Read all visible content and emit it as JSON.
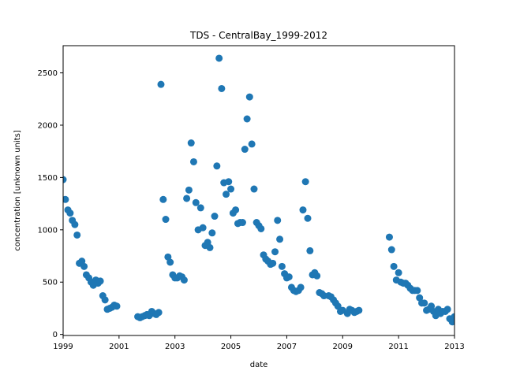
{
  "chart_data": {
    "type": "scatter",
    "title": "TDS - CentralBay_1999-2012",
    "xlabel": "date",
    "ylabel": "concentration [unknown units]",
    "xlim": [
      1999.0,
      2013.0
    ],
    "ylim": [
      -10,
      2760
    ],
    "xticks": [
      1999,
      2001,
      2003,
      2005,
      2007,
      2009,
      2011,
      2013
    ],
    "xtick_labels": [
      "1999",
      "2001",
      "2003",
      "2005",
      "2007",
      "2009",
      "2011",
      "2013"
    ],
    "yticks": [
      0,
      500,
      1000,
      1500,
      2000,
      2500
    ],
    "ytick_labels": [
      "0",
      "500",
      "1000",
      "1500",
      "2000",
      "2500"
    ],
    "grid": false,
    "marker_color": "#1f77b4",
    "series": [
      {
        "name": "TDS",
        "points": [
          [
            1999.0,
            1480
          ],
          [
            1999.08,
            1290
          ],
          [
            1999.17,
            1190
          ],
          [
            1999.25,
            1160
          ],
          [
            1999.33,
            1090
          ],
          [
            1999.42,
            1050
          ],
          [
            1999.5,
            950
          ],
          [
            1999.58,
            680
          ],
          [
            1999.67,
            700
          ],
          [
            1999.75,
            650
          ],
          [
            1999.83,
            570
          ],
          [
            1999.92,
            540
          ],
          [
            2000.0,
            500
          ],
          [
            2000.08,
            470
          ],
          [
            2000.17,
            520
          ],
          [
            2000.25,
            490
          ],
          [
            2000.33,
            510
          ],
          [
            2000.42,
            370
          ],
          [
            2000.5,
            330
          ],
          [
            2000.58,
            240
          ],
          [
            2000.67,
            250
          ],
          [
            2000.75,
            260
          ],
          [
            2000.83,
            280
          ],
          [
            2000.92,
            270
          ],
          [
            2001.67,
            170
          ],
          [
            2001.75,
            160
          ],
          [
            2001.83,
            170
          ],
          [
            2001.92,
            180
          ],
          [
            2002.0,
            190
          ],
          [
            2002.08,
            180
          ],
          [
            2002.17,
            220
          ],
          [
            2002.25,
            200
          ],
          [
            2002.33,
            190
          ],
          [
            2002.42,
            210
          ],
          [
            2002.5,
            2390
          ],
          [
            2002.58,
            1290
          ],
          [
            2002.67,
            1100
          ],
          [
            2002.75,
            740
          ],
          [
            2002.83,
            690
          ],
          [
            2002.92,
            570
          ],
          [
            2003.0,
            540
          ],
          [
            2003.08,
            540
          ],
          [
            2003.17,
            560
          ],
          [
            2003.25,
            550
          ],
          [
            2003.33,
            520
          ],
          [
            2003.42,
            1300
          ],
          [
            2003.5,
            1380
          ],
          [
            2003.58,
            1830
          ],
          [
            2003.67,
            1650
          ],
          [
            2003.75,
            1260
          ],
          [
            2003.83,
            1000
          ],
          [
            2003.92,
            1210
          ],
          [
            2004.0,
            1020
          ],
          [
            2004.08,
            850
          ],
          [
            2004.17,
            880
          ],
          [
            2004.25,
            830
          ],
          [
            2004.33,
            970
          ],
          [
            2004.42,
            1130
          ],
          [
            2004.5,
            1610
          ],
          [
            2004.58,
            2640
          ],
          [
            2004.67,
            2350
          ],
          [
            2004.75,
            1450
          ],
          [
            2004.83,
            1340
          ],
          [
            2004.92,
            1460
          ],
          [
            2005.0,
            1390
          ],
          [
            2005.08,
            1160
          ],
          [
            2005.17,
            1190
          ],
          [
            2005.25,
            1060
          ],
          [
            2005.33,
            1070
          ],
          [
            2005.42,
            1070
          ],
          [
            2005.5,
            1770
          ],
          [
            2005.58,
            2060
          ],
          [
            2005.67,
            2270
          ],
          [
            2005.75,
            1820
          ],
          [
            2005.83,
            1390
          ],
          [
            2005.92,
            1070
          ],
          [
            2006.0,
            1040
          ],
          [
            2006.08,
            1010
          ],
          [
            2006.17,
            760
          ],
          [
            2006.25,
            720
          ],
          [
            2006.33,
            700
          ],
          [
            2006.42,
            670
          ],
          [
            2006.5,
            680
          ],
          [
            2006.58,
            790
          ],
          [
            2006.67,
            1090
          ],
          [
            2006.75,
            910
          ],
          [
            2006.83,
            650
          ],
          [
            2006.92,
            580
          ],
          [
            2007.0,
            540
          ],
          [
            2007.08,
            550
          ],
          [
            2007.17,
            450
          ],
          [
            2007.25,
            420
          ],
          [
            2007.33,
            410
          ],
          [
            2007.42,
            420
          ],
          [
            2007.5,
            450
          ],
          [
            2007.58,
            1190
          ],
          [
            2007.67,
            1460
          ],
          [
            2007.75,
            1110
          ],
          [
            2007.83,
            800
          ],
          [
            2007.92,
            570
          ],
          [
            2008.0,
            590
          ],
          [
            2008.08,
            560
          ],
          [
            2008.17,
            400
          ],
          [
            2008.25,
            390
          ],
          [
            2008.33,
            370
          ],
          [
            2008.5,
            370
          ],
          [
            2008.58,
            360
          ],
          [
            2008.67,
            330
          ],
          [
            2008.75,
            300
          ],
          [
            2008.83,
            270
          ],
          [
            2008.92,
            220
          ],
          [
            2009.0,
            230
          ],
          [
            2009.17,
            200
          ],
          [
            2009.25,
            240
          ],
          [
            2009.33,
            230
          ],
          [
            2009.42,
            210
          ],
          [
            2009.5,
            220
          ],
          [
            2009.58,
            230
          ],
          [
            2010.67,
            930
          ],
          [
            2010.75,
            810
          ],
          [
            2010.83,
            650
          ],
          [
            2010.92,
            520
          ],
          [
            2011.0,
            590
          ],
          [
            2011.08,
            500
          ],
          [
            2011.17,
            490
          ],
          [
            2011.25,
            490
          ],
          [
            2011.33,
            470
          ],
          [
            2011.42,
            440
          ],
          [
            2011.5,
            420
          ],
          [
            2011.58,
            420
          ],
          [
            2011.67,
            420
          ],
          [
            2011.75,
            350
          ],
          [
            2011.83,
            300
          ],
          [
            2011.92,
            300
          ],
          [
            2012.0,
            230
          ],
          [
            2012.08,
            240
          ],
          [
            2012.17,
            270
          ],
          [
            2012.25,
            220
          ],
          [
            2012.33,
            180
          ],
          [
            2012.42,
            240
          ],
          [
            2012.5,
            200
          ],
          [
            2012.58,
            220
          ],
          [
            2012.67,
            220
          ],
          [
            2012.75,
            240
          ],
          [
            2012.83,
            150
          ],
          [
            2012.92,
            120
          ],
          [
            2013.0,
            170
          ],
          [
            2013.08,
            170
          ]
        ]
      }
    ]
  }
}
